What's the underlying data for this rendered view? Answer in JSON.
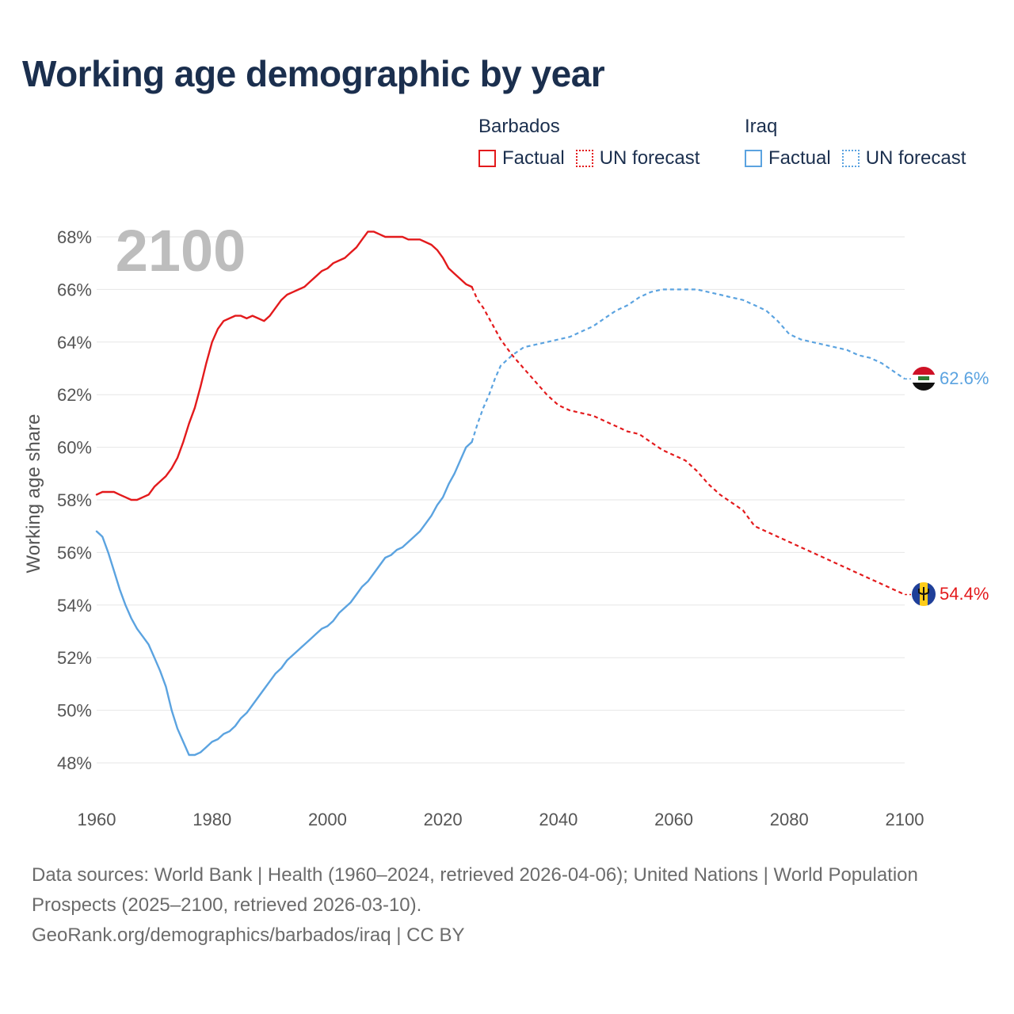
{
  "title": "Working age demographic by year",
  "legend": {
    "groups": [
      {
        "country": "Barbados",
        "factual": "Factual",
        "forecast": "UN forecast"
      },
      {
        "country": "Iraq",
        "factual": "Factual",
        "forecast": "UN forecast"
      }
    ]
  },
  "year_label": "2100",
  "footer": {
    "sources": "Data sources: World Bank | Health (1960–2024, retrieved 2026-04-06); United Nations | World Population Prospects (2025–2100, retrieved 2026-03-10).",
    "link": "GeoRank.org/demographics/barbados/iraq | CC BY"
  },
  "colors": {
    "barbados": "#e31a1c",
    "iraq": "#5ba3e0",
    "title": "#1b2f4e",
    "grid": "#e6e6e6",
    "axis_text": "#555555"
  },
  "chart_data": {
    "type": "line",
    "ylabel": "Working age share",
    "xlabel": "",
    "xlim": [
      1960,
      2100
    ],
    "ylim": [
      47.5,
      68.5
    ],
    "xticks": [
      1960,
      1980,
      2000,
      2020,
      2040,
      2060,
      2080,
      2100
    ],
    "xtick_labels": [
      "1960",
      "1980",
      "2000",
      "2020",
      "2040",
      "2060",
      "2080",
      "2100"
    ],
    "yticks": [
      48,
      50,
      52,
      54,
      56,
      58,
      60,
      62,
      64,
      66,
      68
    ],
    "ytick_labels": [
      "48%",
      "50%",
      "52%",
      "54%",
      "56%",
      "58%",
      "60%",
      "62%",
      "64%",
      "66%",
      "68%"
    ],
    "factual_range": [
      1960,
      2024
    ],
    "forecast_range": [
      2024,
      2100
    ],
    "series": [
      {
        "name": "Barbados",
        "end_label": "54.4%",
        "factual": [
          [
            1960,
            58.2
          ],
          [
            1961,
            58.3
          ],
          [
            1962,
            58.3
          ],
          [
            1963,
            58.3
          ],
          [
            1964,
            58.2
          ],
          [
            1965,
            58.1
          ],
          [
            1966,
            58.0
          ],
          [
            1967,
            58.0
          ],
          [
            1968,
            58.1
          ],
          [
            1969,
            58.2
          ],
          [
            1970,
            58.5
          ],
          [
            1971,
            58.7
          ],
          [
            1972,
            58.9
          ],
          [
            1973,
            59.2
          ],
          [
            1974,
            59.6
          ],
          [
            1975,
            60.2
          ],
          [
            1976,
            60.9
          ],
          [
            1977,
            61.5
          ],
          [
            1978,
            62.3
          ],
          [
            1979,
            63.2
          ],
          [
            1980,
            64.0
          ],
          [
            1981,
            64.5
          ],
          [
            1982,
            64.8
          ],
          [
            1983,
            64.9
          ],
          [
            1984,
            65.0
          ],
          [
            1985,
            65.0
          ],
          [
            1986,
            64.9
          ],
          [
            1987,
            65.0
          ],
          [
            1988,
            64.9
          ],
          [
            1989,
            64.8
          ],
          [
            1990,
            65.0
          ],
          [
            1991,
            65.3
          ],
          [
            1992,
            65.6
          ],
          [
            1993,
            65.8
          ],
          [
            1994,
            65.9
          ],
          [
            1995,
            66.0
          ],
          [
            1996,
            66.1
          ],
          [
            1997,
            66.3
          ],
          [
            1998,
            66.5
          ],
          [
            1999,
            66.7
          ],
          [
            2000,
            66.8
          ],
          [
            2001,
            67.0
          ],
          [
            2002,
            67.1
          ],
          [
            2003,
            67.2
          ],
          [
            2004,
            67.4
          ],
          [
            2005,
            67.6
          ],
          [
            2006,
            67.9
          ],
          [
            2007,
            68.2
          ],
          [
            2008,
            68.2
          ],
          [
            2009,
            68.1
          ],
          [
            2010,
            68.0
          ],
          [
            2011,
            68.0
          ],
          [
            2012,
            68.0
          ],
          [
            2013,
            68.0
          ],
          [
            2014,
            67.9
          ],
          [
            2015,
            67.9
          ],
          [
            2016,
            67.9
          ],
          [
            2017,
            67.8
          ],
          [
            2018,
            67.7
          ],
          [
            2019,
            67.5
          ],
          [
            2020,
            67.2
          ],
          [
            2021,
            66.8
          ],
          [
            2022,
            66.6
          ],
          [
            2023,
            66.4
          ],
          [
            2024,
            66.2
          ],
          [
            2025,
            66.1
          ]
        ],
        "forecast": [
          [
            2025,
            66.1
          ],
          [
            2026,
            65.6
          ],
          [
            2027,
            65.3
          ],
          [
            2028,
            64.9
          ],
          [
            2029,
            64.5
          ],
          [
            2030,
            64.1
          ],
          [
            2032,
            63.5
          ],
          [
            2034,
            63.0
          ],
          [
            2036,
            62.5
          ],
          [
            2038,
            62.0
          ],
          [
            2040,
            61.6
          ],
          [
            2042,
            61.4
          ],
          [
            2044,
            61.3
          ],
          [
            2046,
            61.2
          ],
          [
            2048,
            61.0
          ],
          [
            2050,
            60.8
          ],
          [
            2052,
            60.6
          ],
          [
            2054,
            60.5
          ],
          [
            2056,
            60.2
          ],
          [
            2058,
            59.9
          ],
          [
            2060,
            59.7
          ],
          [
            2062,
            59.5
          ],
          [
            2064,
            59.1
          ],
          [
            2066,
            58.6
          ],
          [
            2068,
            58.2
          ],
          [
            2070,
            57.9
          ],
          [
            2072,
            57.6
          ],
          [
            2074,
            57.0
          ],
          [
            2076,
            56.8
          ],
          [
            2078,
            56.6
          ],
          [
            2080,
            56.4
          ],
          [
            2082,
            56.2
          ],
          [
            2084,
            56.0
          ],
          [
            2086,
            55.8
          ],
          [
            2088,
            55.6
          ],
          [
            2090,
            55.4
          ],
          [
            2092,
            55.2
          ],
          [
            2094,
            55.0
          ],
          [
            2096,
            54.8
          ],
          [
            2098,
            54.6
          ],
          [
            2100,
            54.4
          ]
        ]
      },
      {
        "name": "Iraq",
        "end_label": "62.6%",
        "factual": [
          [
            1960,
            56.8
          ],
          [
            1961,
            56.6
          ],
          [
            1962,
            56.0
          ],
          [
            1963,
            55.3
          ],
          [
            1964,
            54.6
          ],
          [
            1965,
            54.0
          ],
          [
            1966,
            53.5
          ],
          [
            1967,
            53.1
          ],
          [
            1968,
            52.8
          ],
          [
            1969,
            52.5
          ],
          [
            1970,
            52.0
          ],
          [
            1971,
            51.5
          ],
          [
            1972,
            50.9
          ],
          [
            1973,
            50.0
          ],
          [
            1974,
            49.3
          ],
          [
            1975,
            48.8
          ],
          [
            1976,
            48.3
          ],
          [
            1977,
            48.3
          ],
          [
            1978,
            48.4
          ],
          [
            1979,
            48.6
          ],
          [
            1980,
            48.8
          ],
          [
            1981,
            48.9
          ],
          [
            1982,
            49.1
          ],
          [
            1983,
            49.2
          ],
          [
            1984,
            49.4
          ],
          [
            1985,
            49.7
          ],
          [
            1986,
            49.9
          ],
          [
            1987,
            50.2
          ],
          [
            1988,
            50.5
          ],
          [
            1989,
            50.8
          ],
          [
            1990,
            51.1
          ],
          [
            1991,
            51.4
          ],
          [
            1992,
            51.6
          ],
          [
            1993,
            51.9
          ],
          [
            1994,
            52.1
          ],
          [
            1995,
            52.3
          ],
          [
            1996,
            52.5
          ],
          [
            1997,
            52.7
          ],
          [
            1998,
            52.9
          ],
          [
            1999,
            53.1
          ],
          [
            2000,
            53.2
          ],
          [
            2001,
            53.4
          ],
          [
            2002,
            53.7
          ],
          [
            2003,
            53.9
          ],
          [
            2004,
            54.1
          ],
          [
            2005,
            54.4
          ],
          [
            2006,
            54.7
          ],
          [
            2007,
            54.9
          ],
          [
            2008,
            55.2
          ],
          [
            2009,
            55.5
          ],
          [
            2010,
            55.8
          ],
          [
            2011,
            55.9
          ],
          [
            2012,
            56.1
          ],
          [
            2013,
            56.2
          ],
          [
            2014,
            56.4
          ],
          [
            2015,
            56.6
          ],
          [
            2016,
            56.8
          ],
          [
            2017,
            57.1
          ],
          [
            2018,
            57.4
          ],
          [
            2019,
            57.8
          ],
          [
            2020,
            58.1
          ],
          [
            2021,
            58.6
          ],
          [
            2022,
            59.0
          ],
          [
            2023,
            59.5
          ],
          [
            2024,
            60.0
          ],
          [
            2025,
            60.2
          ]
        ],
        "forecast": [
          [
            2025,
            60.2
          ],
          [
            2026,
            60.9
          ],
          [
            2027,
            61.5
          ],
          [
            2028,
            62.0
          ],
          [
            2029,
            62.6
          ],
          [
            2030,
            63.1
          ],
          [
            2032,
            63.5
          ],
          [
            2034,
            63.8
          ],
          [
            2036,
            63.9
          ],
          [
            2038,
            64.0
          ],
          [
            2040,
            64.1
          ],
          [
            2042,
            64.2
          ],
          [
            2044,
            64.4
          ],
          [
            2046,
            64.6
          ],
          [
            2048,
            64.9
          ],
          [
            2050,
            65.2
          ],
          [
            2052,
            65.4
          ],
          [
            2054,
            65.7
          ],
          [
            2056,
            65.9
          ],
          [
            2058,
            66.0
          ],
          [
            2060,
            66.0
          ],
          [
            2062,
            66.0
          ],
          [
            2064,
            66.0
          ],
          [
            2066,
            65.9
          ],
          [
            2068,
            65.8
          ],
          [
            2070,
            65.7
          ],
          [
            2072,
            65.6
          ],
          [
            2074,
            65.4
          ],
          [
            2076,
            65.2
          ],
          [
            2078,
            64.8
          ],
          [
            2080,
            64.3
          ],
          [
            2082,
            64.1
          ],
          [
            2084,
            64.0
          ],
          [
            2086,
            63.9
          ],
          [
            2088,
            63.8
          ],
          [
            2090,
            63.7
          ],
          [
            2092,
            63.5
          ],
          [
            2094,
            63.4
          ],
          [
            2096,
            63.2
          ],
          [
            2098,
            62.9
          ],
          [
            2100,
            62.6
          ]
        ]
      }
    ]
  }
}
